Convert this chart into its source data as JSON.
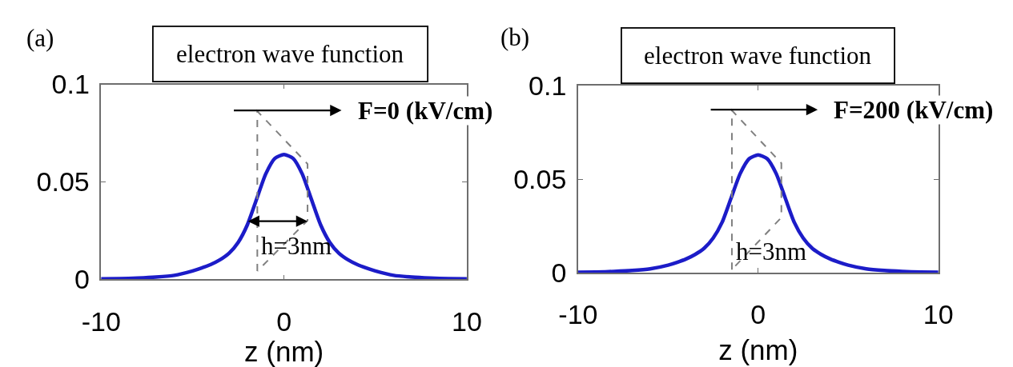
{
  "chart_data": [
    {
      "type": "line",
      "title": "electron wave function",
      "xlabel": "z (nm)",
      "x": [
        -10,
        -9,
        -8,
        -7,
        -6,
        -5,
        -4.5,
        -4,
        -3.5,
        -3,
        -2.5,
        -2,
        -1.5,
        -1,
        -0.5,
        0,
        0.5,
        1,
        1.5,
        2,
        2.5,
        3,
        3.5,
        4,
        4.5,
        5,
        6,
        7,
        8,
        9,
        10
      ],
      "series": [
        {
          "color": "#1c1cc8",
          "values": [
            0.0002,
            0.0003,
            0.0006,
            0.0011,
            0.002,
            0.0043,
            0.0058,
            0.0076,
            0.01,
            0.0134,
            0.019,
            0.028,
            0.041,
            0.054,
            0.062,
            0.064,
            0.062,
            0.054,
            0.041,
            0.028,
            0.019,
            0.0134,
            0.01,
            0.0076,
            0.0058,
            0.0043,
            0.002,
            0.0011,
            0.0006,
            0.0003,
            0.0002
          ]
        }
      ],
      "xlim": [
        -10,
        10
      ],
      "xticks": [
        -10,
        0,
        10
      ],
      "ylim": [
        0,
        0.1
      ],
      "yticks": [
        0,
        0.05,
        0.1
      ],
      "annotations": [
        "(a)",
        "F=0 (kV/cm)",
        "h=3nm"
      ]
    },
    {
      "type": "line",
      "title": "electron wave function",
      "xlabel": "z (nm)",
      "x": [
        -10,
        -9,
        -8,
        -7,
        -6,
        -5,
        -4.5,
        -4,
        -3.5,
        -3,
        -2.5,
        -2,
        -1.5,
        -1,
        -0.5,
        0,
        0.5,
        1,
        1.5,
        2,
        2.5,
        3,
        3.5,
        4,
        4.5,
        5,
        6,
        7,
        8,
        9,
        10
      ],
      "series": [
        {
          "color": "#1c1cc8",
          "values": [
            0.0002,
            0.0003,
            0.0006,
            0.0011,
            0.002,
            0.004,
            0.0055,
            0.0073,
            0.0097,
            0.013,
            0.0185,
            0.027,
            0.04,
            0.053,
            0.061,
            0.063,
            0.061,
            0.053,
            0.04,
            0.027,
            0.0185,
            0.013,
            0.0097,
            0.0073,
            0.0055,
            0.004,
            0.002,
            0.0011,
            0.0006,
            0.0003,
            0.0002
          ]
        }
      ],
      "xlim": [
        -10,
        10
      ],
      "xticks": [
        -10,
        0,
        10
      ],
      "ylim": [
        0,
        0.1
      ],
      "yticks": [
        0,
        0.05,
        0.1
      ],
      "annotations": [
        "(b)",
        "F=200 (kV/cm)",
        "h=3nm"
      ]
    }
  ]
}
